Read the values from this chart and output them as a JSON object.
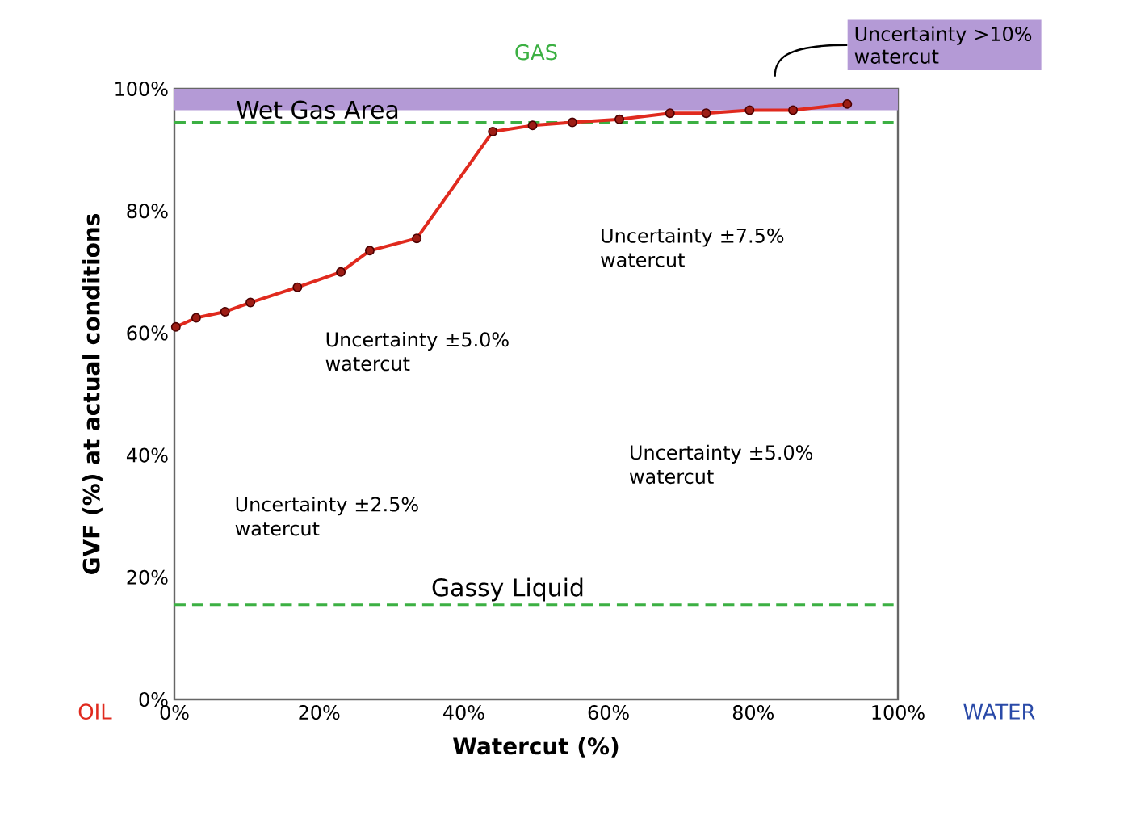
{
  "chart_data": {
    "type": "line",
    "xlabel": "Watercut (%)",
    "ylabel": "GVF (%) at actual conditions",
    "xlim": [
      0,
      100
    ],
    "ylim": [
      0,
      100
    ],
    "xticks": [
      {
        "value": 0,
        "label": "0%"
      },
      {
        "value": 20,
        "label": "20%"
      },
      {
        "value": 40,
        "label": "40%"
      },
      {
        "value": 60,
        "label": "60%"
      },
      {
        "value": 80,
        "label": "80%"
      },
      {
        "value": 100,
        "label": "100%"
      }
    ],
    "yticks": [
      {
        "value": 0,
        "label": "0%"
      },
      {
        "value": 20,
        "label": "20%"
      },
      {
        "value": 40,
        "label": "40%"
      },
      {
        "value": 60,
        "label": "60%"
      },
      {
        "value": 80,
        "label": "80%"
      },
      {
        "value": 100,
        "label": "100%"
      }
    ],
    "marker": "circle",
    "line_style": "solid",
    "series": [
      {
        "color": "#e02a1e",
        "x": [
          0.2,
          3,
          7,
          10.5,
          17,
          23,
          27,
          33.5,
          44,
          49.5,
          55,
          61.5,
          68.5,
          73.5,
          79.5,
          85.5,
          93
        ],
        "values": [
          61,
          62.5,
          63.5,
          65,
          67.5,
          70,
          73.5,
          75.5,
          93,
          94,
          94.5,
          95,
          96,
          96,
          96.5,
          96.5,
          97.5
        ]
      }
    ],
    "ref_lines": [
      {
        "axis": "y",
        "value": 94.5,
        "label": "Wet Gas Area",
        "color": "#3cb043",
        "line_style": "dashed"
      },
      {
        "axis": "y",
        "value": 15.5,
        "label": "Gassy Liquid",
        "color": "#3cb043",
        "line_style": "dashed"
      }
    ],
    "bands": [
      {
        "axis": "y",
        "from": 96.5,
        "to": 100,
        "label": "Uncertainty >10% watercut",
        "color": "#b49ad6"
      }
    ],
    "annotations": [
      "GAS",
      "OIL",
      "WATER",
      "Uncertainty ±5.0% watercut",
      "Uncertainty ±7.5% watercut",
      "Uncertainty ±5.0% watercut",
      "Uncertainty ±2.5% watercut"
    ]
  }
}
